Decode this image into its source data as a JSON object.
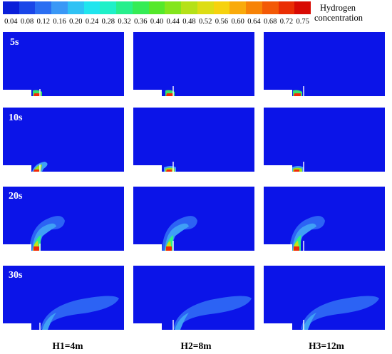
{
  "legend": {
    "title_line1": "Hydrogen",
    "title_line2": "concentration",
    "ticks": [
      "0.04",
      "0.08",
      "0.12",
      "0.16",
      "0.20",
      "0.24",
      "0.28",
      "0.32",
      "0.36",
      "0.40",
      "0.44",
      "0.48",
      "0.52",
      "0.56",
      "0.60",
      "0.64",
      "0.68",
      "0.72",
      "0.75"
    ],
    "colors": [
      "#0a1fd9",
      "#1a46e8",
      "#2a6ef2",
      "#3a98f6",
      "#2fc2f4",
      "#20e5ee",
      "#1ff0c8",
      "#27ef8c",
      "#35ec55",
      "#55e82a",
      "#84e51c",
      "#b5e118",
      "#dddd14",
      "#f6d20e",
      "#f9aa0a",
      "#f78307",
      "#f35906",
      "#ea2e04",
      "#d80a03"
    ]
  },
  "rows": [
    {
      "time": "5s"
    },
    {
      "time": "10s"
    },
    {
      "time": "20s"
    },
    {
      "time": "30s"
    }
  ],
  "columns": [
    {
      "label": "H1=4m"
    },
    {
      "label": "H2=8m"
    },
    {
      "label": "H3=12m"
    }
  ],
  "colors": {
    "background_blue": "#0b14e8",
    "plume_light": "#2c63f4",
    "plume_mid": "#3fa0f6",
    "plume_hot": "#f12a06"
  }
}
